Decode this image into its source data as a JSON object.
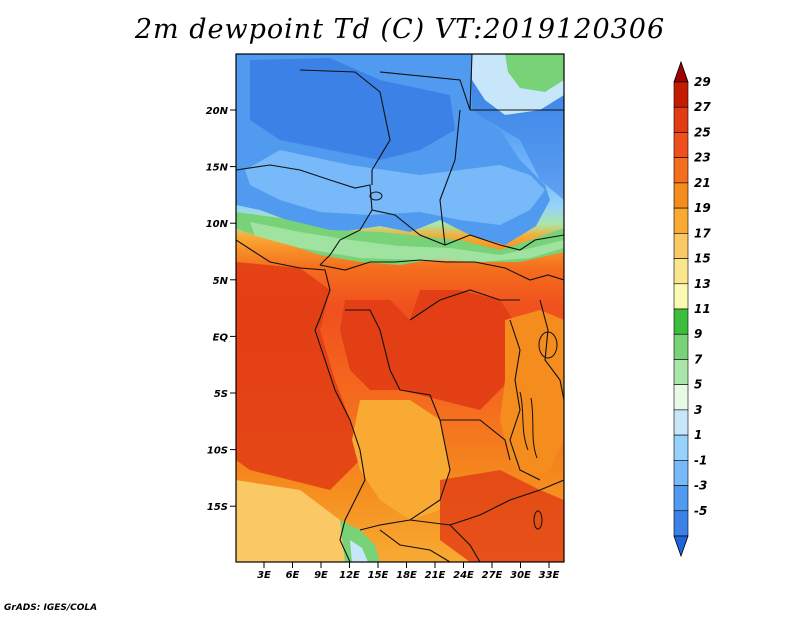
{
  "title": "2m dewpoint Td (C) VT:2019120306",
  "credit": "GrADS: IGES/COLA",
  "map": {
    "lat_labels": [
      "20N",
      "15N",
      "10N",
      "5N",
      "EQ",
      "5S",
      "10S",
      "15S"
    ],
    "lon_labels": [
      "3E",
      "6E",
      "9E",
      "12E",
      "15E",
      "18E",
      "21E",
      "24E",
      "27E",
      "30E",
      "33E"
    ]
  },
  "colorbar": {
    "levels": [
      "29",
      "27",
      "25",
      "23",
      "21",
      "19",
      "17",
      "15",
      "13",
      "11",
      "9",
      "7",
      "5",
      "3",
      "1",
      "-1",
      "-3",
      "-5"
    ],
    "colors_top_to_bottom": [
      "#a00000",
      "#c41c00",
      "#e13c14",
      "#f0501e",
      "#f56e1e",
      "#f58c1e",
      "#f8aa32",
      "#fac864",
      "#fae68c",
      "#fafab4",
      "#3cbe3c",
      "#78d278",
      "#aae6aa",
      "#e6fae6",
      "#c8e6fa",
      "#96d2fa",
      "#78b9fa",
      "#509bf0",
      "#3c82e6",
      "#1e64dc"
    ]
  },
  "colors": {
    "north_dry": "#3c82e6",
    "sahel": "#96d2fa",
    "tropics_wet": "#f0501e",
    "south": "#f8aa32",
    "border": "#111111"
  }
}
